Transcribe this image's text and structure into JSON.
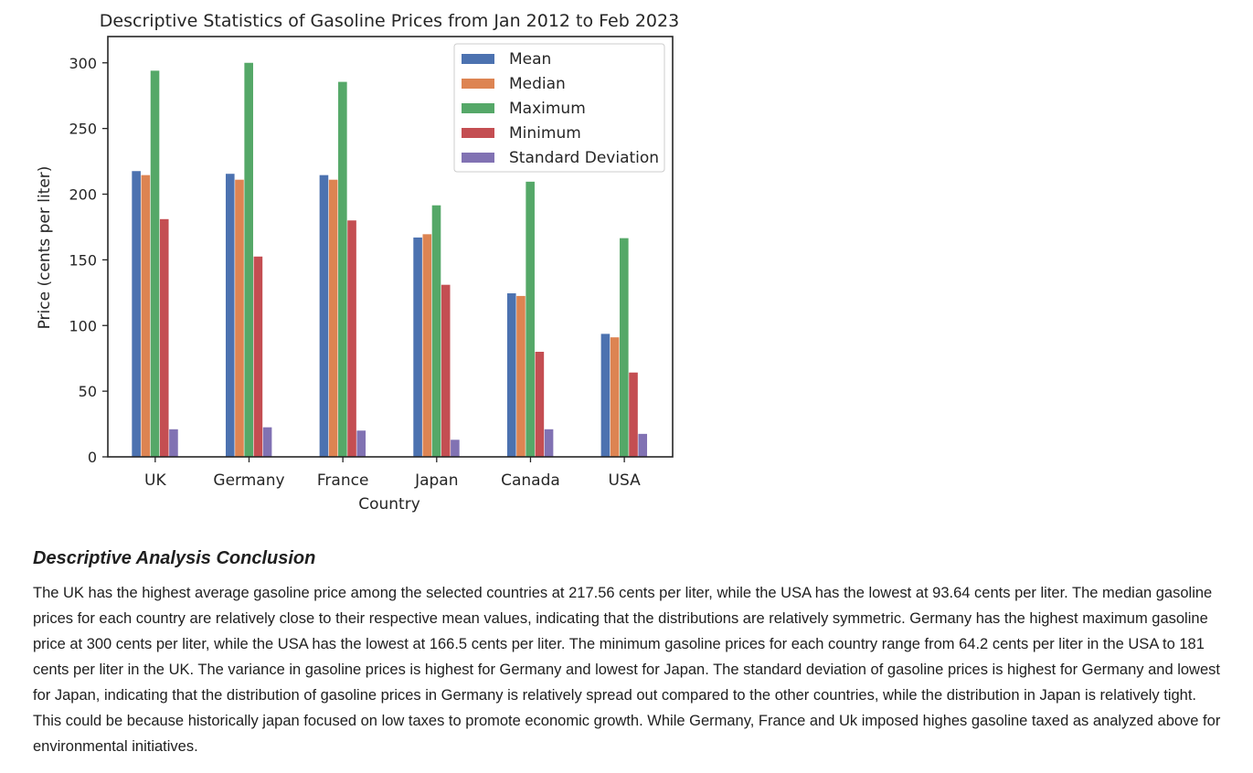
{
  "chart_data": {
    "type": "bar",
    "title": "Descriptive Statistics of Gasoline Prices from Jan 2012 to Feb 2023",
    "xlabel": "Country",
    "ylabel": "Price (cents per liter)",
    "ylim": [
      0,
      320
    ],
    "yticks": [
      0,
      50,
      100,
      150,
      200,
      250,
      300
    ],
    "grid": false,
    "legend_position": "top-right",
    "categories": [
      "UK",
      "Germany",
      "France",
      "Japan",
      "Canada",
      "USA"
    ],
    "series": [
      {
        "name": "Mean",
        "color": "#4c72b0",
        "values": [
          217.56,
          215.5,
          214.5,
          167,
          124.5,
          93.64
        ]
      },
      {
        "name": "Median",
        "color": "#dd8452",
        "values": [
          214.5,
          211,
          211,
          169.5,
          122.5,
          91
        ]
      },
      {
        "name": "Maximum",
        "color": "#55a868",
        "values": [
          294,
          300,
          285.5,
          191.5,
          209.5,
          166.5
        ]
      },
      {
        "name": "Minimum",
        "color": "#c44e52",
        "values": [
          181,
          152.5,
          180,
          131,
          80,
          64.2
        ]
      },
      {
        "name": "Standard Deviation",
        "color": "#8172b3",
        "values": [
          21,
          22.5,
          20,
          13,
          21,
          17.5
        ]
      }
    ]
  },
  "conclusion": {
    "heading": "Descriptive Analysis Conclusion",
    "body": "The UK has the highest average gasoline price among the selected countries at 217.56 cents per liter, while the USA has the lowest at 93.64 cents per liter. The median gasoline prices for each country are relatively close to their respective mean values, indicating that the distributions are relatively symmetric. Germany has the highest maximum gasoline price at 300 cents per liter, while the USA has the lowest at 166.5 cents per liter. The minimum gasoline prices for each country range from 64.2 cents per liter in the USA to 181 cents per liter in the UK. The variance in gasoline prices is highest for Germany and lowest for Japan. The standard deviation of gasoline prices is highest for Germany and lowest for Japan, indicating that the distribution of gasoline prices in Germany is relatively spread out compared to the other countries, while the distribution in Japan is relatively tight. This could be because historically japan focused on low taxes to promote economic growth. While Germany, France and Uk imposed highes gasoline taxed as analyzed above for environmental initiatives."
  }
}
